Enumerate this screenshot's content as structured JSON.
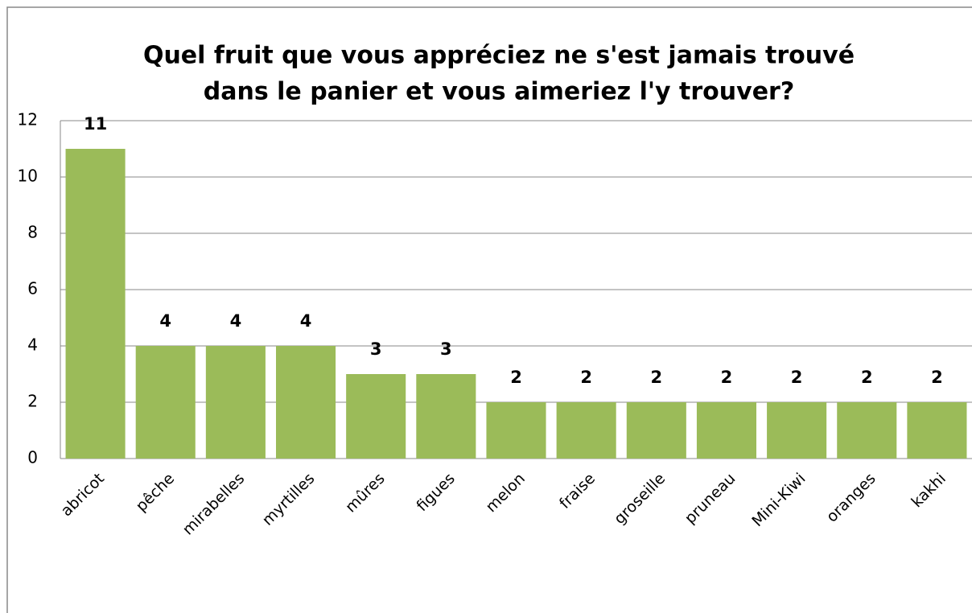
{
  "chart_data": {
    "type": "bar",
    "title": [
      "Quel fruit que vous appréciez ne s'est jamais trouvé",
      "dans le panier et vous aimeriez l'y trouver?"
    ],
    "categories": [
      "abricot",
      "pêche",
      "mirabelles",
      "myrtilles",
      "mûres",
      "figues",
      "melon",
      "fraise",
      "groseille",
      "pruneau",
      "Mini-Kiwi",
      "oranges",
      "kakhi"
    ],
    "values": [
      11,
      4,
      4,
      4,
      3,
      3,
      2,
      2,
      2,
      2,
      2,
      2,
      2
    ],
    "color": "#9bbb59",
    "ylim": [
      0,
      12
    ],
    "yticks": [
      0,
      2,
      4,
      6,
      8,
      10,
      12
    ],
    "grid": true
  }
}
